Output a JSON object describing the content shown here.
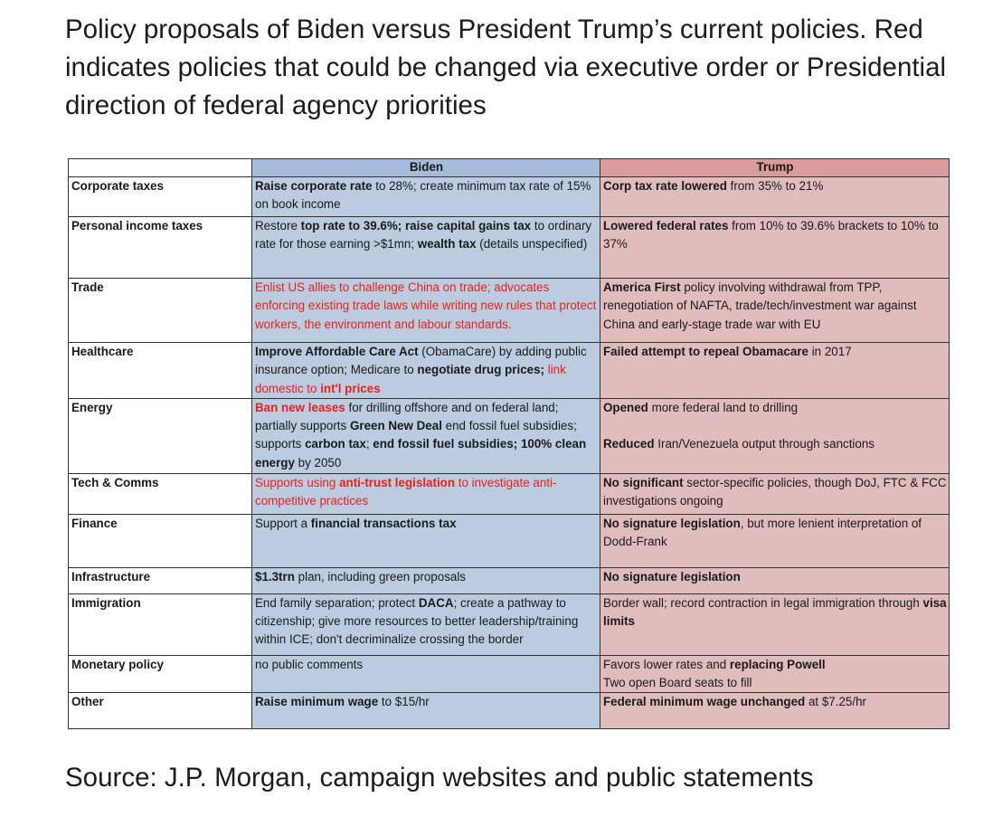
{
  "heading": "Policy proposals of Biden versus President Trump’s current policies. Red indicates policies that could be changed via executive order or Presidential direction of federal agency priorities",
  "source": "Source: J.P. Morgan, campaign websites and public statements",
  "colors": {
    "biden_header": "#a7bcdb",
    "biden_cell": "#bccbe0",
    "trump_header": "#d99b9b",
    "trump_cell": "#e0bcbd",
    "executive_order_red": "#e2231a"
  },
  "columns": [
    "",
    "Biden",
    "Trump"
  ],
  "rows": [
    {
      "category": "Corporate taxes",
      "biden": [
        {
          "t": "Raise corporate rate",
          "b": true
        },
        {
          "t": " to 28%; create minimum tax rate of 15% on book income"
        }
      ],
      "trump": [
        {
          "t": "Corp tax rate lowered",
          "b": true
        },
        {
          "t": " from 35% to 21%"
        }
      ]
    },
    {
      "category": "Personal income taxes",
      "biden": [
        {
          "t": "Restore "
        },
        {
          "t": "top rate to 39.6%; raise capital gains tax",
          "b": true
        },
        {
          "t": " to ordinary rate for those earning >$1mn; "
        },
        {
          "t": "wealth tax",
          "b": true
        },
        {
          "t": " (details unspecified)"
        }
      ],
      "trump": [
        {
          "t": "Lowered federal rates",
          "b": true
        },
        {
          "t": " from 10% to 39.6% brackets to 10% to 37%"
        }
      ]
    },
    {
      "category": "Trade",
      "biden": [
        {
          "t": "Enlist US allies to challenge China on trade; advocates enforcing existing trade laws while writing new rules that protect workers, the environment and labour standards.",
          "r": true
        }
      ],
      "trump": [
        {
          "t": "America First",
          "b": true
        },
        {
          "t": " policy involving withdrawal from TPP, renegotiation of NAFTA, trade/tech/investment war against China and early-stage trade war with EU"
        }
      ]
    },
    {
      "category": "Healthcare",
      "biden": [
        {
          "t": "Improve Affordable Care Act",
          "b": true
        },
        {
          "t": " (ObamaCare) by adding public insurance option; Medicare to "
        },
        {
          "t": "negotiate drug prices;",
          "b": true
        },
        {
          "t": " link domestic to ",
          "r": true
        },
        {
          "t": "int'l prices",
          "b": true,
          "r": true
        }
      ],
      "trump": [
        {
          "t": "Failed attempt to repeal Obamacare",
          "b": true
        },
        {
          "t": " in 2017"
        }
      ]
    },
    {
      "category": "Energy",
      "biden": [
        {
          "t": "Ban new leases",
          "b": true,
          "r": true
        },
        {
          "t": " for drilling offshore and  on federal land; partially supports "
        },
        {
          "t": "Green New Deal",
          "b": true
        },
        {
          "t": " end fossil fuel subsidies; supports "
        },
        {
          "t": "carbon tax",
          "b": true
        },
        {
          "t": "; "
        },
        {
          "t": "end fossil fuel subsidies; 100% clean energy",
          "b": true
        },
        {
          "t": " by 2050"
        }
      ],
      "trump": [
        {
          "t": "Opened",
          "b": true
        },
        {
          "t": " more federal land to drilling"
        },
        {
          "gap": true
        },
        {
          "t": "Reduced",
          "b": true
        },
        {
          "t": " Iran/Venezuela output through sanctions"
        }
      ]
    },
    {
      "category": "Tech & Comms",
      "biden": [
        {
          "t": "Supports using ",
          "r": true
        },
        {
          "t": "anti-trust legislation",
          "b": true,
          "r": true
        },
        {
          "t": " to investigate anti-competitive practices",
          "r": true
        }
      ],
      "trump": [
        {
          "t": "No significant",
          "b": true
        },
        {
          "t": " sector-specific policies, though DoJ, FTC & FCC investigations ongoing"
        }
      ]
    },
    {
      "category": "Finance",
      "biden": [
        {
          "t": "Support a "
        },
        {
          "t": "financial transactions tax",
          "b": true
        }
      ],
      "trump": [
        {
          "t": "No signature legislation",
          "b": true
        },
        {
          "t": ", but more lenient interpretation of Dodd-Frank"
        }
      ]
    },
    {
      "category": "Infrastructure",
      "biden": [
        {
          "t": "$1.3trn",
          "b": true
        },
        {
          "t": " plan, including green proposals"
        }
      ],
      "trump": [
        {
          "t": "No signature legislation",
          "b": true
        }
      ]
    },
    {
      "category": "Immigration",
      "biden": [
        {
          "t": "End family separation; protect "
        },
        {
          "t": "DACA",
          "b": true
        },
        {
          "t": "; create a pathway to citizenship; give more resources to better leadership/training within ICE; don't decriminalize crossing the border"
        }
      ],
      "trump": [
        {
          "t": "Border wall; record contraction in legal immigration through "
        },
        {
          "t": "visa limits",
          "b": true
        }
      ]
    },
    {
      "category": "Monetary policy",
      "biden": [
        {
          "t": "no public comments"
        }
      ],
      "trump": [
        {
          "t": "Favors lower rates and "
        },
        {
          "t": "replacing Powell",
          "b": true
        },
        {
          "br": true
        },
        {
          "t": "Two open Board seats to fill"
        }
      ]
    },
    {
      "category": "Other",
      "biden": [
        {
          "t": "Raise minimum wage",
          "b": true
        },
        {
          "t": " to $15/hr"
        }
      ],
      "trump": [
        {
          "t": "Federal minimum wage unchanged",
          "b": true
        },
        {
          "t": " at $7.25/hr"
        }
      ]
    }
  ]
}
